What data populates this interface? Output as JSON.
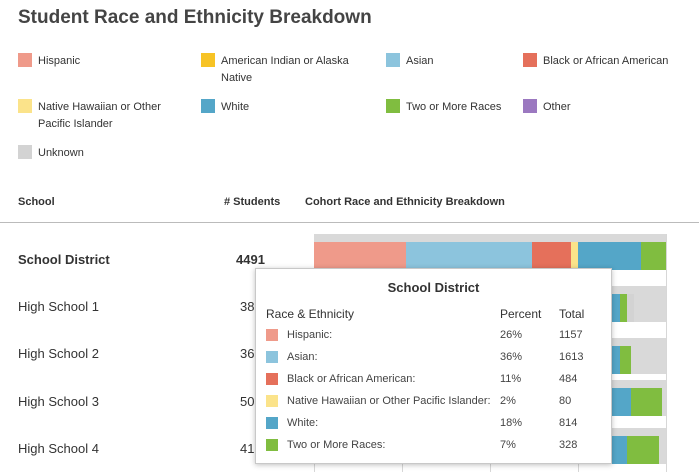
{
  "page": {
    "title": "Student Race and Ethnicity Breakdown"
  },
  "legend": [
    {
      "label": "Hispanic",
      "color": "#ef9a8a"
    },
    {
      "label": "American Indian or Alaska Native",
      "color": "#f7c325"
    },
    {
      "label": "Asian",
      "color": "#8cc4dd"
    },
    {
      "label": "Black or African American",
      "color": "#e5705b"
    },
    {
      "label": "Native Hawaiian or Other Pacific Islander",
      "color": "#fbe38a"
    },
    {
      "label": "White",
      "color": "#54a6c8"
    },
    {
      "label": "Two or More Races",
      "color": "#80bd40"
    },
    {
      "label": "Other",
      "color": "#9b78c0"
    },
    {
      "label": "Unknown",
      "color": "#d3d3d3"
    }
  ],
  "table": {
    "columns": {
      "school": "School",
      "students": "# Students",
      "breakdown": "Cohort Race and Ethnicity Breakdown"
    },
    "rows": [
      {
        "name": "School District",
        "count": "4491",
        "bold": true,
        "segments": [
          0.26,
          0,
          0.36,
          0.11,
          0.02,
          0.18,
          0.07,
          0,
          0
        ]
      },
      {
        "name": "High School 1",
        "count": "38",
        "bold": false,
        "segments": [
          0.33,
          0,
          0.39,
          0.08,
          0.03,
          0.04,
          0.02,
          0,
          0.02
        ]
      },
      {
        "name": "High School 2",
        "count": "36",
        "bold": false,
        "segments": [
          0.3,
          0,
          0.42,
          0.06,
          0.03,
          0.06,
          0.03,
          0,
          0
        ]
      },
      {
        "name": "High School 3",
        "count": "50",
        "bold": false,
        "segments": [
          0.2,
          0,
          0.56,
          0.06,
          0.02,
          0.06,
          0.09,
          0,
          0
        ]
      },
      {
        "name": "High School 4",
        "count": "41",
        "bold": false,
        "segments": [
          0.25,
          0,
          0.5,
          0.06,
          0.02,
          0.06,
          0.09,
          0,
          0
        ]
      }
    ]
  },
  "tooltip": {
    "title": "School District",
    "headers": {
      "race": "Race & Ethnicity",
      "percent": "Percent",
      "total": "Total"
    },
    "rows": [
      {
        "label": "Hispanic:",
        "percent": "26%",
        "total": "1157",
        "color": "#ef9a8a"
      },
      {
        "label": "Asian:",
        "percent": "36%",
        "total": "1613",
        "color": "#8cc4dd"
      },
      {
        "label": "Black or African American:",
        "percent": "11%",
        "total": "484",
        "color": "#e5705b"
      },
      {
        "label": "Native Hawaiian or Other Pacific Islander:",
        "percent": "2%",
        "total": "80",
        "color": "#fbe38a"
      },
      {
        "label": "White:",
        "percent": "18%",
        "total": "814",
        "color": "#54a6c8"
      },
      {
        "label": "Two or More Races:",
        "percent": "7%",
        "total": "328",
        "color": "#80bd40"
      }
    ]
  }
}
